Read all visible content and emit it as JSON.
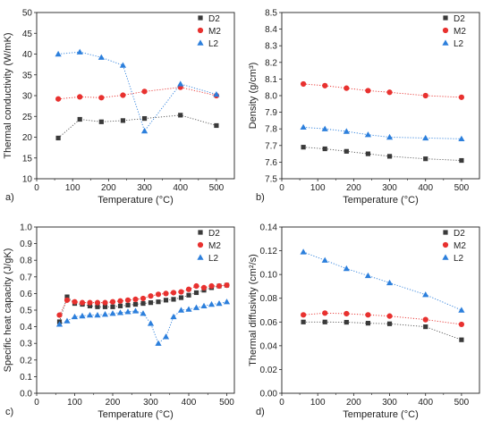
{
  "colors": {
    "D2": "#3a3a3a",
    "M2": "#e8312f",
    "L2": "#2c7fdc",
    "axis": "#222222",
    "dotted_D2": "#555555",
    "dotted_M2": "#e8312f",
    "dotted_L2": "#2c7fdc"
  },
  "chart_data": [
    {
      "id": "a",
      "type": "scatter",
      "panel_label": "a)",
      "xlabel": "Temperature (°C)",
      "ylabel": "Thermal conductivity (W/mK)",
      "xlim": [
        0,
        550
      ],
      "ylim": [
        10,
        50
      ],
      "xticks": [
        0,
        100,
        200,
        300,
        400,
        500
      ],
      "yticks": [
        10,
        15,
        20,
        25,
        30,
        35,
        40,
        45,
        50
      ],
      "legend_position": "top-right",
      "series": [
        {
          "name": "D2",
          "marker": "square",
          "x": [
            60,
            120,
            180,
            240,
            300,
            400,
            500
          ],
          "y": [
            19.8,
            24.3,
            23.7,
            24.0,
            24.5,
            25.3,
            22.8
          ]
        },
        {
          "name": "M2",
          "marker": "circle",
          "x": [
            60,
            120,
            180,
            240,
            300,
            400,
            500
          ],
          "y": [
            29.2,
            29.7,
            29.5,
            30.1,
            31.0,
            32.0,
            30.0
          ]
        },
        {
          "name": "L2",
          "marker": "triangle",
          "x": [
            60,
            120,
            180,
            240,
            300,
            400,
            500
          ],
          "y": [
            40.0,
            40.5,
            39.2,
            37.3,
            21.5,
            32.8,
            30.3
          ]
        }
      ]
    },
    {
      "id": "b",
      "type": "scatter",
      "panel_label": "b)",
      "xlabel": "Temperature (°C)",
      "ylabel": "Density (g/cm³)",
      "xlim": [
        0,
        550
      ],
      "ylim": [
        7.5,
        8.5
      ],
      "xticks": [
        0,
        100,
        200,
        300,
        400,
        500
      ],
      "yticks": [
        7.5,
        7.6,
        7.7,
        7.8,
        7.9,
        8.0,
        8.1,
        8.2,
        8.3,
        8.4,
        8.5
      ],
      "ytick_labels": [
        "7.5",
        "7.6",
        "7.7",
        "7.8",
        "7.9",
        "8.0",
        "8.1",
        "8.2",
        "8.3",
        "8.4",
        "8.5"
      ],
      "legend_position": "top-right",
      "series": [
        {
          "name": "D2",
          "marker": "square",
          "x": [
            60,
            120,
            180,
            240,
            300,
            400,
            500
          ],
          "y": [
            7.69,
            7.68,
            7.665,
            7.65,
            7.635,
            7.62,
            7.61
          ]
        },
        {
          "name": "M2",
          "marker": "circle",
          "x": [
            60,
            120,
            180,
            240,
            300,
            400,
            500
          ],
          "y": [
            8.07,
            8.06,
            8.045,
            8.03,
            8.02,
            8.0,
            7.99
          ]
        },
        {
          "name": "L2",
          "marker": "triangle",
          "x": [
            60,
            120,
            180,
            240,
            300,
            400,
            500
          ],
          "y": [
            7.81,
            7.8,
            7.785,
            7.765,
            7.75,
            7.745,
            7.74
          ]
        }
      ]
    },
    {
      "id": "c",
      "type": "scatter",
      "panel_label": "c)",
      "xlabel": "Temperature (°C)",
      "ylabel": "Specific heat capacity (J/gK)",
      "xlim": [
        0,
        520
      ],
      "ylim": [
        0,
        1.0
      ],
      "xticks": [
        0,
        100,
        200,
        300,
        400,
        500
      ],
      "yticks": [
        0,
        0.1,
        0.2,
        0.3,
        0.4,
        0.5,
        0.6,
        0.7,
        0.8,
        0.9,
        1.0
      ],
      "ytick_labels": [
        "0.0",
        "0.1",
        "0.2",
        "0.3",
        "0.4",
        "0.5",
        "0.6",
        "0.7",
        "0.8",
        "0.9",
        "1.0"
      ],
      "legend_position": "top-right",
      "series": [
        {
          "name": "D2",
          "marker": "square",
          "x": [
            60,
            80,
            100,
            120,
            140,
            160,
            180,
            200,
            220,
            240,
            260,
            280,
            300,
            320,
            340,
            360,
            380,
            400,
            420,
            440,
            460,
            480,
            500
          ],
          "y": [
            0.43,
            0.58,
            0.54,
            0.535,
            0.525,
            0.52,
            0.52,
            0.52,
            0.525,
            0.53,
            0.535,
            0.54,
            0.545,
            0.55,
            0.56,
            0.565,
            0.575,
            0.59,
            0.605,
            0.62,
            0.635,
            0.645,
            0.65
          ]
        },
        {
          "name": "M2",
          "marker": "circle",
          "x": [
            60,
            80,
            100,
            120,
            140,
            160,
            180,
            200,
            220,
            240,
            260,
            280,
            300,
            320,
            340,
            360,
            380,
            400,
            420,
            440,
            460,
            480,
            500
          ],
          "y": [
            0.47,
            0.56,
            0.55,
            0.545,
            0.545,
            0.545,
            0.545,
            0.55,
            0.555,
            0.56,
            0.565,
            0.57,
            0.585,
            0.595,
            0.6,
            0.605,
            0.61,
            0.625,
            0.645,
            0.635,
            0.645,
            0.645,
            0.65
          ]
        },
        {
          "name": "L2",
          "marker": "triangle",
          "x": [
            60,
            80,
            100,
            120,
            140,
            160,
            180,
            200,
            220,
            240,
            260,
            280,
            300,
            320,
            340,
            360,
            380,
            400,
            420,
            440,
            460,
            480,
            500
          ],
          "y": [
            0.415,
            0.435,
            0.46,
            0.465,
            0.47,
            0.47,
            0.475,
            0.48,
            0.485,
            0.49,
            0.495,
            0.48,
            0.42,
            0.3,
            0.34,
            0.46,
            0.5,
            0.505,
            0.515,
            0.525,
            0.535,
            0.54,
            0.55
          ]
        }
      ]
    },
    {
      "id": "d",
      "type": "scatter",
      "panel_label": "d)",
      "xlabel": "Temperature (°C)",
      "ylabel": "Thermal diffusivity (cm²/s)",
      "xlim": [
        0,
        550
      ],
      "ylim": [
        0.0,
        0.14
      ],
      "xticks": [
        0,
        100,
        200,
        300,
        400,
        500
      ],
      "yticks": [
        0.0,
        0.02,
        0.04,
        0.06,
        0.08,
        0.1,
        0.12,
        0.14
      ],
      "ytick_labels": [
        "0.00",
        "0.02",
        "0.04",
        "0.06",
        "0.08",
        "0.10",
        "0.12",
        "0.14"
      ],
      "legend_position": "top-right",
      "series": [
        {
          "name": "D2",
          "marker": "square",
          "x": [
            60,
            120,
            180,
            240,
            300,
            400,
            500
          ],
          "y": [
            0.06,
            0.06,
            0.0598,
            0.059,
            0.0585,
            0.056,
            0.045
          ]
        },
        {
          "name": "M2",
          "marker": "circle",
          "x": [
            60,
            120,
            180,
            240,
            300,
            400,
            500
          ],
          "y": [
            0.066,
            0.0675,
            0.067,
            0.066,
            0.065,
            0.062,
            0.058
          ]
        },
        {
          "name": "L2",
          "marker": "triangle",
          "x": [
            60,
            120,
            180,
            240,
            300,
            400,
            500
          ],
          "y": [
            0.119,
            0.112,
            0.105,
            0.099,
            0.093,
            0.083,
            0.07
          ]
        }
      ]
    }
  ]
}
